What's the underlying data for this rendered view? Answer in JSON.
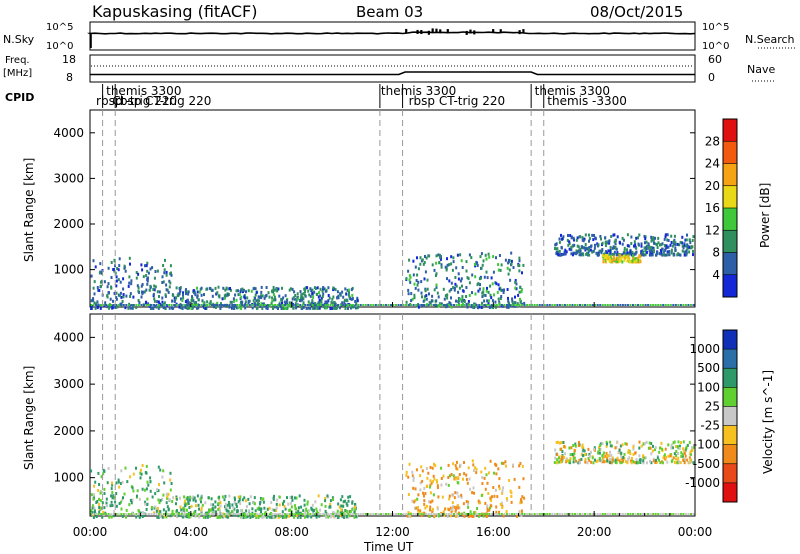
{
  "header": {
    "title": "Kapuskasing (fitACF)",
    "beam": "Beam 03",
    "date": "08/Oct/2015"
  },
  "noise_panel": {
    "left_label": "N.Sky",
    "left_ticks": [
      "10^5",
      "10^0"
    ],
    "right_label": "N.Search",
    "right_ticks": [
      "10^5",
      "10^0"
    ]
  },
  "freq_panel": {
    "left_label_line1": "Freq.",
    "left_label_line2": "[MHz]",
    "left_ticks": [
      "18",
      "8"
    ],
    "right_label": "Nave",
    "right_ticks": [
      "60",
      "0"
    ]
  },
  "cpid": {
    "label": "CPID",
    "entries": [
      {
        "hour": 0.2,
        "text": "rbsp",
        "row": 2
      },
      {
        "hour": 0.6,
        "text": "themis 3300",
        "row": 1
      },
      {
        "hour": 0.95,
        "text": "rbsp CT-trig 220",
        "row": 2
      },
      {
        "hour": 0.85,
        "text": "Ct-trig 220",
        "row": 2
      },
      {
        "hour": 11.5,
        "text": "themis 3300",
        "row": 1
      },
      {
        "hour": 12.6,
        "text": "rbsp CT-trig 220",
        "row": 2
      },
      {
        "hour": 17.6,
        "text": "themis 3300",
        "row": 1
      },
      {
        "hour": 18.1,
        "text": "themis -3300",
        "row": 2
      }
    ]
  },
  "power_colorbar": {
    "label": "Power [dB]",
    "ticks": [
      "28",
      "24",
      "20",
      "16",
      "12",
      "8",
      "4"
    ],
    "colors": [
      "#e01010",
      "#f25a10",
      "#f5a214",
      "#e8d818",
      "#3ec83a",
      "#2f8f5f",
      "#2d5ea8",
      "#1428d8"
    ]
  },
  "velocity_colorbar": {
    "label": "Velocity [m s^-1]",
    "ticks": [
      "1000",
      "500",
      "100",
      "25",
      "-25",
      "-100",
      "-500",
      "-1000"
    ],
    "colors": [
      "#1030b8",
      "#2a6fa8",
      "#2e9a6a",
      "#5fd030",
      "#c8c8c8",
      "#f5c020",
      "#f08a1a",
      "#e84a18",
      "#e01010"
    ]
  },
  "chart_data": {
    "type": "heatmap",
    "xlabel": "Time UT",
    "ylabel": "Slant Range [km]",
    "x_tick_labels": [
      "00:00",
      "04:00",
      "08:00",
      "12:00",
      "16:00",
      "20:00",
      "00:00"
    ],
    "y_tick_labels": [
      "1000",
      "2000",
      "3000",
      "4000"
    ],
    "xlim_hours": [
      0,
      24
    ],
    "ylim_km": [
      180,
      4500
    ],
    "cpid_change_hours": [
      0.5,
      1.0,
      11.5,
      12.4,
      17.5,
      18.0
    ],
    "power_regions": [
      {
        "t0": 0.0,
        "t1": 3.2,
        "r0": 180,
        "r1": 1300,
        "level": 7
      },
      {
        "t0": 3.2,
        "t1": 10.6,
        "r0": 180,
        "r1": 650,
        "level": 8
      },
      {
        "t0": 12.5,
        "t1": 17.2,
        "r0": 200,
        "r1": 1400,
        "level": 8
      },
      {
        "t0": 18.4,
        "t1": 23.9,
        "r0": 1350,
        "r1": 1800,
        "level": 7
      },
      {
        "t0": 20.3,
        "t1": 21.8,
        "r0": 1200,
        "r1": 1350,
        "level": 18
      }
    ],
    "velocity_regions": [
      {
        "t0": 0.0,
        "t1": 3.2,
        "r0": 180,
        "r1": 1300,
        "level": 100
      },
      {
        "t0": 3.2,
        "t1": 10.6,
        "r0": 180,
        "r1": 650,
        "level": 100
      },
      {
        "t0": 12.5,
        "t1": 17.2,
        "r0": 200,
        "r1": 1400,
        "level": -100
      },
      {
        "t0": 18.4,
        "t1": 23.9,
        "r0": 1350,
        "r1": 1800,
        "level": 0
      }
    ]
  }
}
